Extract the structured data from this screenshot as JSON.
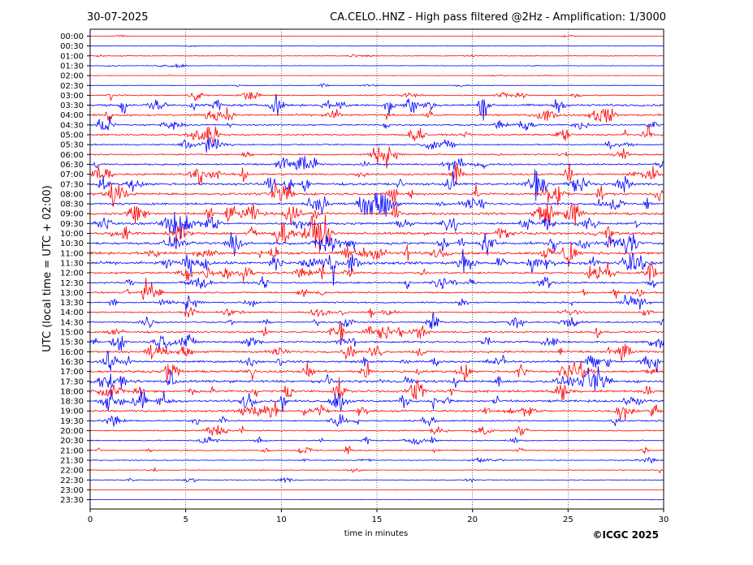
{
  "chart_data": {
    "type": "line",
    "date": "30-07-2025",
    "title": "CA.CELO..HNZ - High pass filtered @2Hz - Amplification: 1/3000",
    "xlabel": "time in minutes",
    "ylabel": "UTC (local time = UTC + 02:00)",
    "credit": "©ICGC 2025",
    "xlim": [
      0,
      30
    ],
    "x_ticks": [
      0,
      5,
      10,
      15,
      20,
      25,
      30
    ],
    "x_tick_labels": [
      "0",
      "5",
      "10",
      "15",
      "20",
      "25",
      "30"
    ],
    "grid": "vertical-dotted",
    "trace_colors": [
      "#ff0000",
      "#0000ff"
    ],
    "row_labels": [
      "00:00",
      "00:30",
      "01:00",
      "01:30",
      "02:00",
      "02:30",
      "03:00",
      "03:30",
      "04:00",
      "04:30",
      "05:00",
      "05:30",
      "06:00",
      "06:30",
      "07:00",
      "07:30",
      "08:00",
      "08:30",
      "09:00",
      "09:30",
      "10:00",
      "10:30",
      "11:00",
      "11:30",
      "12:00",
      "12:30",
      "13:00",
      "13:30",
      "14:00",
      "14:30",
      "15:00",
      "15:30",
      "16:00",
      "16:30",
      "17:00",
      "17:30",
      "18:00",
      "18:30",
      "19:00",
      "19:30",
      "20:00",
      "20:30",
      "21:00",
      "21:30",
      "22:00",
      "22:30",
      "23:00",
      "23:30"
    ],
    "noise_level": [
      0.2,
      0.3,
      0.5,
      0.5,
      0.2,
      0.5,
      1.1,
      2.2,
      1.9,
      1.5,
      1.7,
      1.3,
      1.5,
      1.8,
      2.0,
      2.4,
      2.2,
      2.1,
      2.4,
      2.1,
      2.6,
      2.7,
      2.6,
      2.8,
      2.0,
      1.7,
      1.6,
      1.5,
      1.3,
      1.5,
      1.8,
      1.9,
      2.1,
      2.0,
      2.3,
      2.5,
      2.4,
      2.2,
      2.0,
      1.4,
      1.2,
      1.1,
      1.0,
      0.8,
      0.6,
      0.6,
      0.1,
      0.1
    ]
  }
}
